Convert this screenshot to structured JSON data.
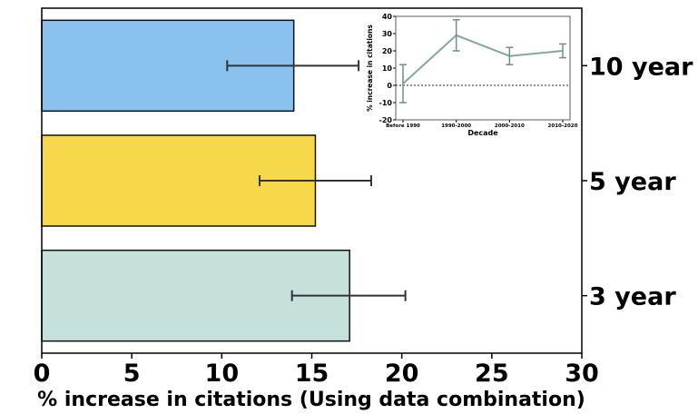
{
  "chart_data": [
    {
      "type": "bar",
      "orientation": "horizontal",
      "title": "",
      "xlabel": "% increase in citations (Using data combination)",
      "ylabel": "",
      "xlim": [
        0,
        30
      ],
      "xticks": [
        0,
        5,
        10,
        15,
        20,
        25,
        30
      ],
      "categories": [
        "10 year",
        "5 year",
        "3 year"
      ],
      "values": [
        14.0,
        15.2,
        17.1
      ],
      "error_low": [
        10.3,
        12.1,
        13.9
      ],
      "error_high": [
        17.6,
        18.3,
        20.2
      ],
      "colors": [
        "#8ac1ef",
        "#f8d84b",
        "#c6e1dc"
      ],
      "grid": false,
      "y_tick_labels_side": "right"
    },
    {
      "type": "line",
      "title": "",
      "xlabel": "Decade",
      "ylabel": "% increase in citations",
      "categories": [
        "Before 1990",
        "1990-2000",
        "2000-2010",
        "2010-2020"
      ],
      "values": [
        1,
        29,
        17,
        20
      ],
      "error_low": [
        -10,
        20,
        12,
        16
      ],
      "error_high": [
        12,
        38,
        22,
        24
      ],
      "ylim": [
        -20,
        40
      ],
      "yticks": [
        -20,
        -10,
        0,
        10,
        20,
        30,
        40
      ],
      "reference_line": 0,
      "line_color": "#7fa8a2",
      "grid": false
    }
  ]
}
